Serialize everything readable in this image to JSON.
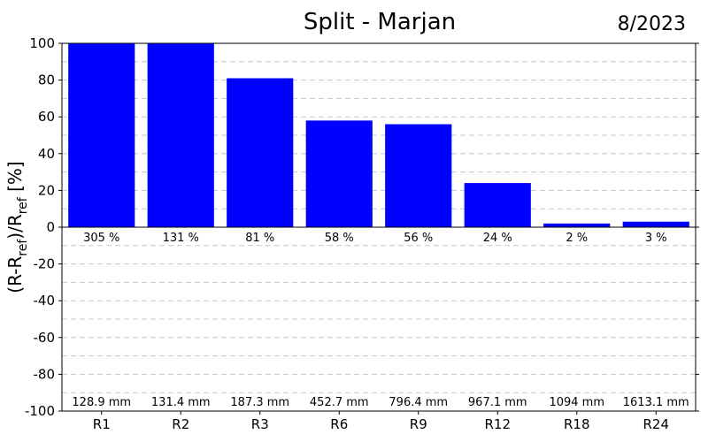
{
  "chart_data": {
    "type": "bar",
    "title": "Split - Marjan",
    "date": "8/2023",
    "ylabel": "(R-R_ref)/R_ref [%]",
    "ylabel_main": "(R-R",
    "ylabel_sub1": "ref",
    "ylabel_mid": ")/R",
    "ylabel_sub2": "ref",
    "ylabel_end": " [%]",
    "ylim": [
      -100,
      100
    ],
    "yticks": [
      100,
      80,
      60,
      40,
      20,
      0,
      -20,
      -40,
      -60,
      -80,
      -100
    ],
    "grid": true,
    "bar_color": "#0000ff",
    "categories": [
      "R1",
      "R2",
      "R3",
      "R6",
      "R9",
      "R12",
      "R18",
      "R24"
    ],
    "values": [
      305,
      131,
      81,
      58,
      56,
      24,
      2,
      3
    ],
    "value_labels": [
      "305 %",
      "131 %",
      "81 %",
      "58 %",
      "56 %",
      "24 %",
      "2 %",
      "3 %"
    ],
    "amount_labels": [
      "128.9 mm",
      "131.4 mm",
      "187.3 mm",
      "452.7 mm",
      "796.4 mm",
      "967.1 mm",
      "1094 mm",
      "1613.1 mm"
    ]
  }
}
